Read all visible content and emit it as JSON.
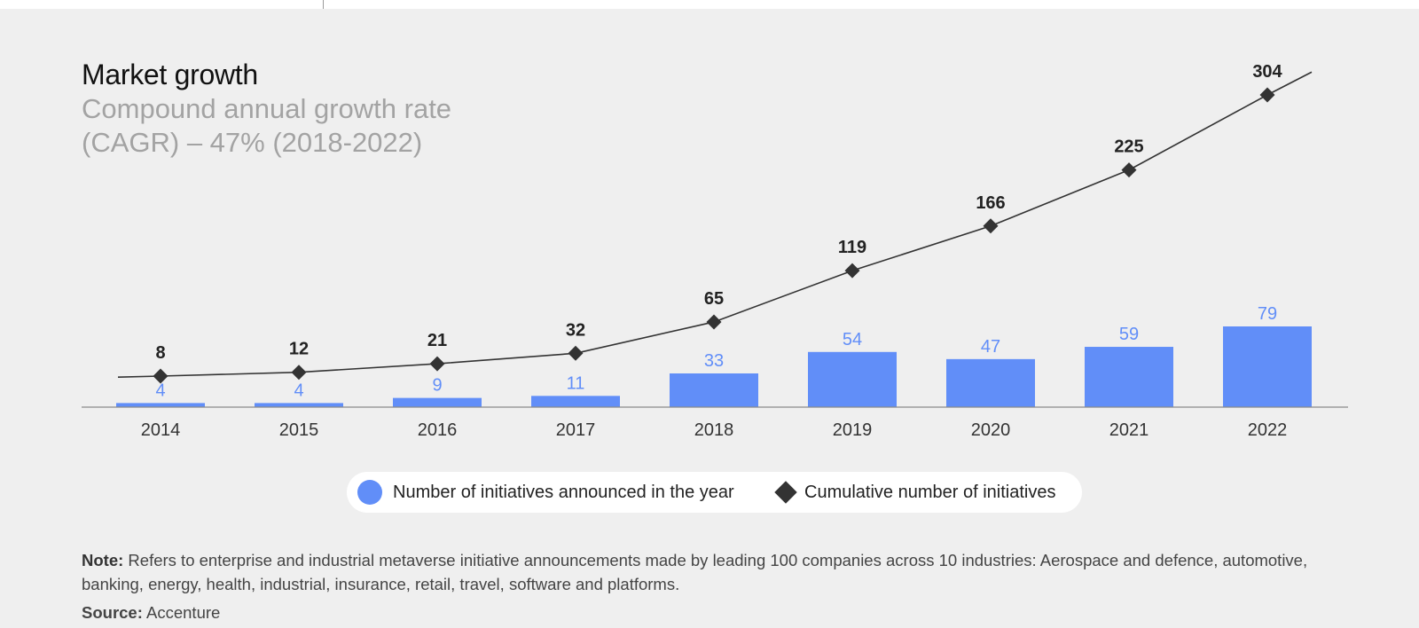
{
  "title": "Market growth",
  "subtitle": "Compound annual growth rate (CAGR) – 47% (2018-2022)",
  "colors": {
    "bar": "#618ef8",
    "line": "#333333",
    "background": "#efefef"
  },
  "chart_data": {
    "type": "bar",
    "categories": [
      "2014",
      "2015",
      "2016",
      "2017",
      "2018",
      "2019",
      "2020",
      "2021",
      "2022"
    ],
    "series": [
      {
        "name": "Number of initiatives announced in the year",
        "type": "bar",
        "values": [
          4,
          4,
          9,
          11,
          33,
          54,
          47,
          59,
          79
        ]
      },
      {
        "name": "Cumulative number of initiatives",
        "type": "line",
        "values": [
          8,
          12,
          21,
          32,
          65,
          119,
          166,
          225,
          304
        ]
      }
    ],
    "title": "Market growth",
    "subtitle": "Compound annual growth rate (CAGR) – 47% (2018-2022)",
    "xlabel": "",
    "ylabel": "",
    "grid": false,
    "legend_position": "bottom-center"
  },
  "legend": {
    "bar_label": "Number of initiatives announced in the year",
    "line_label": "Cumulative number of initiatives"
  },
  "note": {
    "label": "Note:",
    "text": "Refers to enterprise and industrial metaverse initiative announcements made by leading 100 companies across 10 industries: Aerospace and defence, automotive, banking, energy, health, industrial, insurance, retail, travel, software and platforms."
  },
  "source": {
    "label": "Source:",
    "text": "Accenture"
  }
}
